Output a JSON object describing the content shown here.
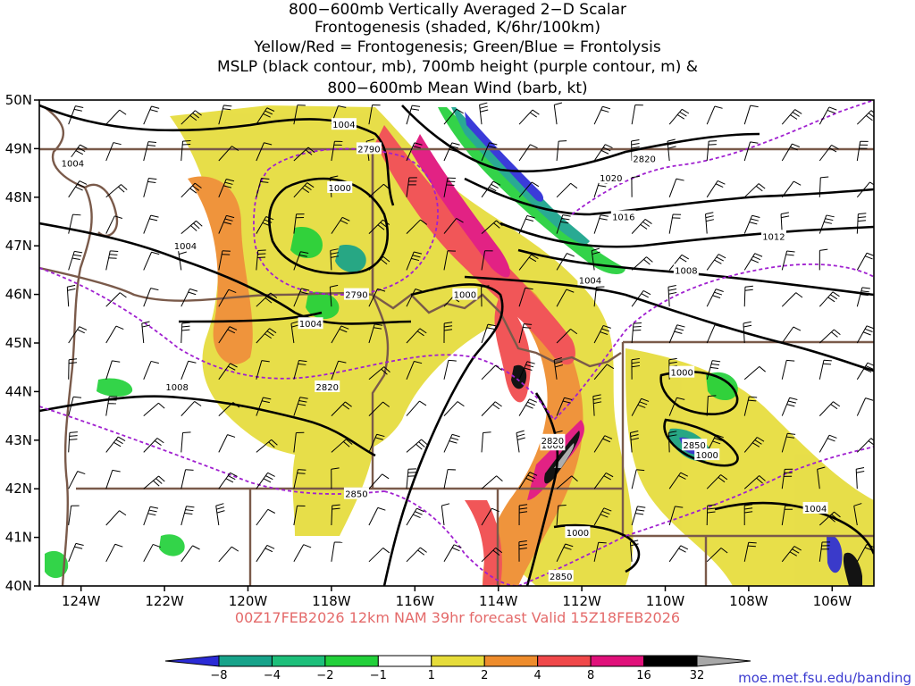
{
  "title_lines": [
    "800−600mb Vertically Averaged 2−D Scalar",
    "Frontogenesis (shaded, K/6hr/100km)",
    "Yellow/Red = Frontogenesis;  Green/Blue = Frontolysis",
    "MSLP (black contour, mb), 700mb height (purple contour, m) &",
    "800−600mb Mean Wind (barb, kt)"
  ],
  "valid_line": "00Z17FEB2026 12km NAM 39hr forecast Valid 15Z18FEB2026",
  "credit": "moe.met.fsu.edu/banding",
  "lat_labels": [
    "50N",
    "49N",
    "48N",
    "47N",
    "46N",
    "45N",
    "44N",
    "43N",
    "42N",
    "41N",
    "40N"
  ],
  "lon_labels": [
    "124W",
    "122W",
    "120W",
    "118W",
    "116W",
    "114W",
    "112W",
    "110W",
    "108W",
    "106W"
  ],
  "map_extent": {
    "lon_min": -125.0,
    "lon_max": -105.0,
    "lat_min": 40.0,
    "lat_max": 50.0
  },
  "colorbar": {
    "labels": [
      "−8",
      "−4",
      "−2",
      "−1",
      "1",
      "2",
      "4",
      "8",
      "16",
      "32"
    ],
    "colors": [
      "#2b2bd6",
      "#17a38a",
      "#1dbf7a",
      "#22d03a",
      "#ffffff",
      "#e6dc3a",
      "#ee8c2c",
      "#f0484a",
      "#e0107a",
      "#000000",
      "#a8a8a8"
    ]
  },
  "mslp_labels": [
    {
      "text": "1004",
      "lon": -117.7,
      "lat": 49.5
    },
    {
      "text": "1004",
      "lon": -124.2,
      "lat": 48.7
    },
    {
      "text": "1000",
      "lon": -117.8,
      "lat": 48.2
    },
    {
      "text": "1004",
      "lon": -121.5,
      "lat": 47.0
    },
    {
      "text": "1004",
      "lon": -118.5,
      "lat": 45.4
    },
    {
      "text": "1008",
      "lon": -121.7,
      "lat": 44.1
    },
    {
      "text": "1020",
      "lon": -111.3,
      "lat": 48.4
    },
    {
      "text": "1016",
      "lon": -111.0,
      "lat": 47.6
    },
    {
      "text": "1012",
      "lon": -107.4,
      "lat": 47.2
    },
    {
      "text": "1008",
      "lon": -109.5,
      "lat": 46.5
    },
    {
      "text": "1004",
      "lon": -111.8,
      "lat": 46.3
    },
    {
      "text": "1000",
      "lon": -114.8,
      "lat": 46.0
    },
    {
      "text": "1000",
      "lon": -109.6,
      "lat": 44.4
    },
    {
      "text": "1000",
      "lon": -112.7,
      "lat": 42.9
    },
    {
      "text": "1000",
      "lon": -109.0,
      "lat": 42.7
    },
    {
      "text": "1004",
      "lon": -106.4,
      "lat": 41.6
    },
    {
      "text": "1000",
      "lon": -112.1,
      "lat": 41.1
    }
  ],
  "height_labels": [
    {
      "text": "2790",
      "lon": -117.1,
      "lat": 49.0
    },
    {
      "text": "2820",
      "lon": -110.5,
      "lat": 48.8
    },
    {
      "text": "2790",
      "lon": -117.4,
      "lat": 46.0
    },
    {
      "text": "2820",
      "lon": -118.1,
      "lat": 44.1
    },
    {
      "text": "2820",
      "lon": -112.7,
      "lat": 43.0
    },
    {
      "text": "2850",
      "lon": -109.3,
      "lat": 42.9
    },
    {
      "text": "2850",
      "lon": -117.4,
      "lat": 41.9
    },
    {
      "text": "2850",
      "lon": -112.5,
      "lat": 40.2
    }
  ]
}
